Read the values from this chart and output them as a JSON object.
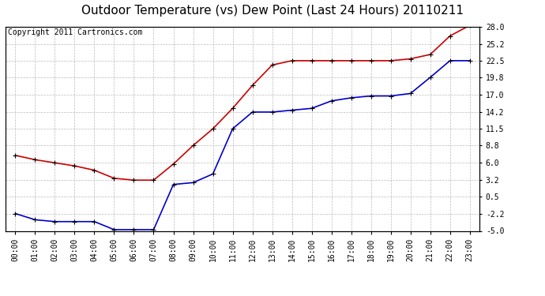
{
  "title": "Outdoor Temperature (vs) Dew Point (Last 24 Hours) 20110211",
  "copyright_text": "Copyright 2011 Cartronics.com",
  "hours": [
    "00:00",
    "01:00",
    "02:00",
    "03:00",
    "04:00",
    "05:00",
    "06:00",
    "07:00",
    "08:00",
    "09:00",
    "10:00",
    "11:00",
    "12:00",
    "13:00",
    "14:00",
    "15:00",
    "16:00",
    "17:00",
    "18:00",
    "19:00",
    "20:00",
    "21:00",
    "22:00",
    "23:00"
  ],
  "temp_red": [
    7.2,
    6.5,
    6.0,
    5.5,
    4.8,
    3.5,
    3.2,
    3.2,
    5.8,
    8.8,
    11.5,
    14.8,
    18.5,
    21.8,
    22.5,
    22.5,
    22.5,
    22.5,
    22.5,
    22.5,
    22.8,
    23.5,
    26.5,
    28.2
  ],
  "temp_blue": [
    -2.2,
    -3.2,
    -3.5,
    -3.5,
    -3.5,
    -4.8,
    -4.8,
    -4.8,
    2.5,
    2.8,
    4.2,
    11.5,
    14.2,
    14.2,
    14.5,
    14.8,
    16.0,
    16.5,
    16.8,
    16.8,
    17.2,
    19.8,
    22.5,
    22.5
  ],
  "ylim": [
    -5.0,
    28.0
  ],
  "yticks": [
    -5.0,
    -2.2,
    0.5,
    3.2,
    6.0,
    8.8,
    11.5,
    14.2,
    17.0,
    19.8,
    22.5,
    25.2,
    28.0
  ],
  "ytick_labels": [
    "-5.0",
    "-2.2",
    "0.5",
    "3.2",
    "6.0",
    "8.8",
    "11.5",
    "14.2",
    "17.0",
    "19.8",
    "22.5",
    "25.2",
    "28.0"
  ],
  "red_color": "#cc0000",
  "blue_color": "#0000cc",
  "background_color": "#ffffff",
  "grid_color": "#bbbbbb",
  "title_fontsize": 11,
  "copyright_fontsize": 7,
  "tick_fontsize": 7,
  "ytick_fontsize": 7
}
